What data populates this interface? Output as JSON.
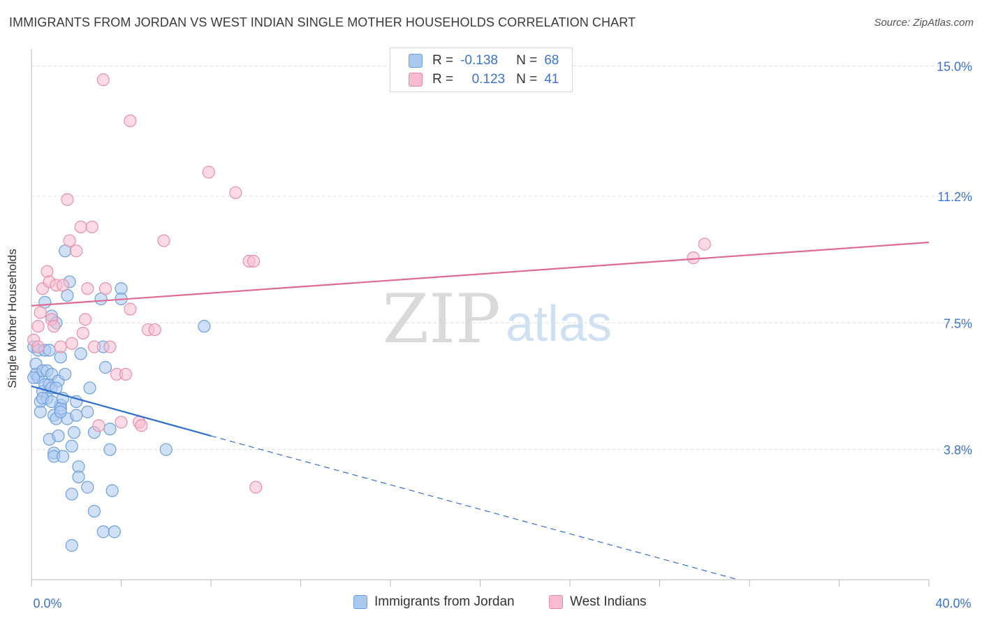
{
  "header": {
    "title": "IMMIGRANTS FROM JORDAN VS WEST INDIAN SINGLE MOTHER HOUSEHOLDS CORRELATION CHART",
    "source": "Source: ZipAtlas.com"
  },
  "watermark": {
    "zip": "ZIP",
    "atlas": "atlas"
  },
  "legend": {
    "rows": [
      {
        "r_label": "R =",
        "r_value": "-0.138",
        "n_label": "N =",
        "n_value": "68",
        "color": "#a9c8f0",
        "border": "#6e9fdc"
      },
      {
        "r_label": "R =",
        "r_value": "0.123",
        "n_label": "N =",
        "n_value": "41",
        "color": "#f7bccd",
        "border": "#e88aa6"
      }
    ]
  },
  "colors": {
    "blue_fill": "#a9c8f0",
    "blue_stroke": "#6e9fdc",
    "blue_line": "#2f6fd0",
    "pink_fill": "#f7bccd",
    "pink_stroke": "#e590aa",
    "pink_line": "#e06a92",
    "axis_text": "#3b74d0",
    "grid": "#dddddd"
  },
  "chart_data": {
    "type": "scatter",
    "title": "IMMIGRANTS FROM JORDAN VS WEST INDIAN SINGLE MOTHER HOUSEHOLDS CORRELATION CHART",
    "xlabel": "",
    "ylabel": "Single Mother Households",
    "xlim": [
      0,
      40
    ],
    "ylim": [
      0,
      15.5
    ],
    "x_tick_labels": [
      "0.0%",
      "40.0%"
    ],
    "y_ticks": [
      3.8,
      7.5,
      11.2,
      15.0
    ],
    "y_tick_labels": [
      "3.8%",
      "7.5%",
      "11.2%",
      "15.0%"
    ],
    "grid": true,
    "legend_position": "bottom",
    "series": [
      {
        "name": "Immigrants from Jordan",
        "points": [
          [
            0.1,
            6.8
          ],
          [
            0.2,
            6.3
          ],
          [
            0.2,
            6.0
          ],
          [
            0.3,
            5.9
          ],
          [
            0.3,
            6.7
          ],
          [
            0.4,
            5.2
          ],
          [
            0.4,
            4.9
          ],
          [
            0.5,
            5.5
          ],
          [
            0.5,
            6.1
          ],
          [
            0.6,
            8.1
          ],
          [
            0.6,
            6.7
          ],
          [
            0.6,
            5.7
          ],
          [
            0.7,
            5.3
          ],
          [
            0.7,
            6.1
          ],
          [
            0.8,
            4.1
          ],
          [
            0.8,
            6.7
          ],
          [
            0.8,
            5.7
          ],
          [
            0.9,
            5.6
          ],
          [
            0.9,
            7.7
          ],
          [
            0.9,
            6.0
          ],
          [
            1.0,
            4.8
          ],
          [
            1.0,
            3.7
          ],
          [
            1.0,
            3.6
          ],
          [
            1.1,
            4.7
          ],
          [
            1.1,
            7.5
          ],
          [
            1.2,
            5.8
          ],
          [
            1.2,
            4.2
          ],
          [
            1.3,
            5.1
          ],
          [
            1.3,
            5.0
          ],
          [
            1.3,
            6.5
          ],
          [
            1.4,
            5.3
          ],
          [
            1.4,
            3.6
          ],
          [
            1.5,
            9.6
          ],
          [
            1.5,
            6.0
          ],
          [
            1.6,
            8.3
          ],
          [
            1.6,
            4.7
          ],
          [
            1.7,
            8.7
          ],
          [
            1.8,
            3.9
          ],
          [
            1.8,
            2.5
          ],
          [
            1.8,
            1.0
          ],
          [
            1.9,
            4.3
          ],
          [
            2.0,
            5.2
          ],
          [
            2.0,
            4.8
          ],
          [
            2.1,
            3.3
          ],
          [
            2.1,
            3.0
          ],
          [
            2.2,
            6.6
          ],
          [
            2.5,
            4.9
          ],
          [
            2.5,
            2.7
          ],
          [
            2.6,
            5.6
          ],
          [
            2.8,
            4.3
          ],
          [
            2.8,
            2.0
          ],
          [
            3.1,
            8.2
          ],
          [
            3.2,
            6.8
          ],
          [
            3.2,
            1.4
          ],
          [
            3.3,
            6.2
          ],
          [
            3.5,
            4.4
          ],
          [
            3.5,
            3.8
          ],
          [
            3.6,
            2.6
          ],
          [
            3.7,
            1.4
          ],
          [
            4.0,
            8.5
          ],
          [
            4.0,
            8.2
          ],
          [
            6.0,
            3.8
          ],
          [
            7.7,
            7.4
          ],
          [
            0.1,
            5.9
          ],
          [
            0.5,
            5.3
          ],
          [
            0.9,
            5.2
          ],
          [
            1.1,
            5.6
          ],
          [
            1.3,
            4.9
          ]
        ]
      },
      {
        "name": "West Indians",
        "points": [
          [
            0.1,
            7.0
          ],
          [
            0.3,
            7.4
          ],
          [
            0.3,
            6.8
          ],
          [
            0.4,
            7.8
          ],
          [
            0.5,
            8.5
          ],
          [
            0.7,
            9.0
          ],
          [
            0.8,
            8.7
          ],
          [
            0.9,
            7.6
          ],
          [
            1.0,
            7.4
          ],
          [
            1.1,
            8.6
          ],
          [
            1.3,
            6.8
          ],
          [
            1.4,
            8.6
          ],
          [
            1.6,
            11.1
          ],
          [
            1.7,
            9.9
          ],
          [
            1.8,
            6.9
          ],
          [
            2.0,
            9.6
          ],
          [
            2.2,
            10.3
          ],
          [
            2.3,
            7.2
          ],
          [
            2.4,
            7.6
          ],
          [
            2.5,
            8.5
          ],
          [
            2.7,
            10.3
          ],
          [
            2.8,
            6.8
          ],
          [
            3.0,
            4.5
          ],
          [
            3.2,
            14.6
          ],
          [
            3.3,
            8.5
          ],
          [
            3.5,
            6.8
          ],
          [
            3.8,
            6.0
          ],
          [
            4.0,
            4.6
          ],
          [
            4.2,
            6.0
          ],
          [
            4.4,
            7.9
          ],
          [
            4.8,
            4.6
          ],
          [
            4.9,
            4.5
          ],
          [
            5.2,
            7.3
          ],
          [
            5.5,
            7.3
          ],
          [
            5.9,
            9.9
          ],
          [
            7.9,
            11.9
          ],
          [
            9.1,
            11.3
          ],
          [
            9.7,
            9.3
          ],
          [
            9.9,
            9.3
          ],
          [
            10.0,
            2.7
          ],
          [
            29.5,
            9.4
          ]
        ],
        "extra_points": [
          [
            4.4,
            13.4
          ],
          [
            30.0,
            9.8
          ]
        ]
      }
    ],
    "trend_lines": [
      {
        "series": "Immigrants from Jordan",
        "solid": [
          [
            0,
            5.65
          ],
          [
            8,
            4.2
          ]
        ],
        "dashed": [
          [
            8,
            4.2
          ],
          [
            31.5,
            0
          ]
        ]
      },
      {
        "series": "West Indians",
        "solid": [
          [
            0,
            8.0
          ],
          [
            40,
            9.85
          ]
        ]
      }
    ]
  },
  "bottom_legend": {
    "items": [
      {
        "label": "Immigrants from Jordan"
      },
      {
        "label": "West Indians"
      }
    ]
  }
}
